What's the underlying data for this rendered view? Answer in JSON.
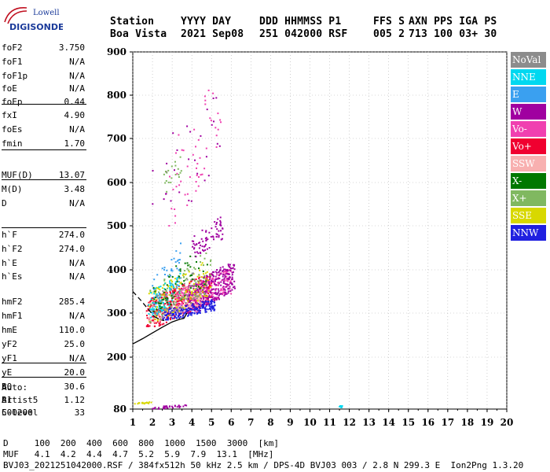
{
  "logo": {
    "line1": "Lowell",
    "line2": "DIGISONDE",
    "accent": "#1a3a9a"
  },
  "header": {
    "line1": [
      "Station",
      "YYYY DAY",
      "DDD HHMMSS P1",
      "FFS S",
      "AXN PPS IGA PS"
    ],
    "line2": [
      "Boa Vista",
      "2021 Sep08",
      "251 042000 RSF",
      "005 2",
      "713 100 03+ 30"
    ]
  },
  "params": [
    {
      "n": "foF2",
      "v": "3.750"
    },
    {
      "n": "foF1",
      "v": "N/A"
    },
    {
      "n": "foF1p",
      "v": "N/A"
    },
    {
      "n": "foE",
      "v": "N/A"
    },
    {
      "n": "foEp",
      "v": "0.44"
    },
    {
      "n": "fxI",
      "v": "4.90"
    },
    {
      "n": "foEs",
      "v": "N/A"
    },
    {
      "n": "fmin",
      "v": "1.70"
    },
    {
      "n": "MUF(D)",
      "v": "13.07"
    },
    {
      "n": "M(D)",
      "v": "3.48"
    },
    {
      "n": "D",
      "v": "N/A"
    },
    {
      "n": "h`F",
      "v": "274.0"
    },
    {
      "n": "h`F2",
      "v": "274.0"
    },
    {
      "n": "h`E",
      "v": "N/A"
    },
    {
      "n": "h`Es",
      "v": "N/A"
    },
    {
      "n": "hmF2",
      "v": "285.4"
    },
    {
      "n": "hmF1",
      "v": "N/A"
    },
    {
      "n": "hmE",
      "v": "110.0"
    },
    {
      "n": "yF2",
      "v": "25.0"
    },
    {
      "n": "yF1",
      "v": "N/A"
    },
    {
      "n": "yE",
      "v": "20.0"
    },
    {
      "n": "B0",
      "v": "30.6"
    },
    {
      "n": "B1",
      "v": "1.12"
    },
    {
      "n": "C-level",
      "v": "33"
    }
  ],
  "auto": [
    "Auto:",
    "Artist5",
    "500200"
  ],
  "legend": [
    {
      "label": "NoVal",
      "color": "#8c8c8c"
    },
    {
      "label": "NNE",
      "color": "#00d8f0"
    },
    {
      "label": "E",
      "color": "#3aa0f0"
    },
    {
      "label": "W",
      "color": "#a000a0"
    },
    {
      "label": "Vo-",
      "color": "#f040b0"
    },
    {
      "label": "Vo+",
      "color": "#f00030"
    },
    {
      "label": "SSW",
      "color": "#f8b0b0"
    },
    {
      "label": "X-",
      "color": "#007800"
    },
    {
      "label": "X+",
      "color": "#80b860"
    },
    {
      "label": "SSE",
      "color": "#d8d800"
    },
    {
      "label": "NNW",
      "color": "#2020e0"
    }
  ],
  "footer": {
    "line1": "D     100  200  400  600  800  1000  1500  3000  [km]",
    "line2": "MUF   4.1  4.2  4.4  4.7  5.2  5.9  7.9  13.1  [MHz]",
    "line3": "BVJ03_2021251042000.RSF / 384fx512h 50 kHz 2.5 km / DPS-4D BVJ03 003 / 2.8 N 299.3 E  Ion2Png 1.3.20"
  },
  "chart_data": {
    "type": "scatter",
    "xlim": [
      1,
      20
    ],
    "ylim": [
      80,
      900
    ],
    "xticks": [
      1,
      2,
      3,
      4,
      5,
      6,
      7,
      8,
      9,
      10,
      11,
      12,
      13,
      14,
      15,
      16,
      17,
      18,
      19,
      20
    ],
    "yticks": [
      80,
      200,
      300,
      400,
      500,
      600,
      700,
      800,
      900
    ],
    "grid": true,
    "clusters": [
      {
        "series": "Vo+",
        "x": [
          1.7,
          5.0
        ],
        "y": [
          270,
          390
        ],
        "n": 420
      },
      {
        "series": "Vo-",
        "x": [
          3.2,
          6.0
        ],
        "y": [
          300,
          400
        ],
        "n": 260
      },
      {
        "series": "W",
        "x": [
          3.8,
          6.2
        ],
        "y": [
          300,
          420
        ],
        "n": 260
      },
      {
        "series": "NNW",
        "x": [
          2.5,
          5.2
        ],
        "y": [
          285,
          330
        ],
        "n": 220
      },
      {
        "series": "SSW",
        "x": [
          1.8,
          4.5
        ],
        "y": [
          280,
          370
        ],
        "n": 120
      },
      {
        "series": "SSE",
        "x": [
          1.8,
          5.0
        ],
        "y": [
          280,
          420
        ],
        "n": 120
      },
      {
        "series": "X+",
        "x": [
          1.8,
          5.0
        ],
        "y": [
          280,
          440
        ],
        "n": 90
      },
      {
        "series": "NNE",
        "x": [
          1.8,
          3.5
        ],
        "y": [
          290,
          400
        ],
        "n": 70
      },
      {
        "series": "E",
        "x": [
          2.0,
          3.5
        ],
        "y": [
          300,
          460
        ],
        "n": 50
      },
      {
        "series": "X-",
        "x": [
          2.0,
          4.8
        ],
        "y": [
          300,
          450
        ],
        "n": 60
      },
      {
        "series": "NoVal",
        "x": [
          2.0,
          4.5
        ],
        "y": [
          280,
          400
        ],
        "n": 60
      },
      {
        "series": "W",
        "x": [
          4.0,
          5.6
        ],
        "y": [
          430,
          520
        ],
        "n": 70
      },
      {
        "series": "Vo-",
        "x": [
          2.8,
          5.5
        ],
        "y": [
          500,
          850
        ],
        "n": 50
      },
      {
        "series": "W",
        "x": [
          2.0,
          5.5
        ],
        "y": [
          480,
          830
        ],
        "n": 30
      },
      {
        "series": "X+",
        "x": [
          2.5,
          3.5
        ],
        "y": [
          560,
          680
        ],
        "n": 20
      },
      {
        "series": "W",
        "x": [
          1.9,
          3.8
        ],
        "y": [
          80,
          90
        ],
        "n": 30
      },
      {
        "series": "SSE",
        "x": [
          1.1,
          2.0
        ],
        "y": [
          90,
          98
        ],
        "n": 20
      },
      {
        "series": "NNE",
        "x": [
          11.5,
          11.7
        ],
        "y": [
          80,
          92
        ],
        "n": 6
      }
    ],
    "curves": [
      {
        "name": "true-height profile",
        "style": "solid",
        "x": [
          1.0,
          1.5,
          2.0,
          2.5,
          3.0,
          3.4,
          3.6,
          3.75
        ],
        "y": [
          230,
          242,
          255,
          268,
          280,
          286,
          288,
          300
        ]
      },
      {
        "name": "model",
        "style": "dashed",
        "x": [
          1.0,
          1.4,
          1.8,
          2.1
        ],
        "y": [
          350,
          330,
          308,
          292
        ]
      },
      {
        "name": "model-lower",
        "style": "dashed",
        "x": [
          2.1,
          2.4,
          2.6
        ],
        "y": [
          292,
          285,
          283
        ]
      }
    ]
  }
}
